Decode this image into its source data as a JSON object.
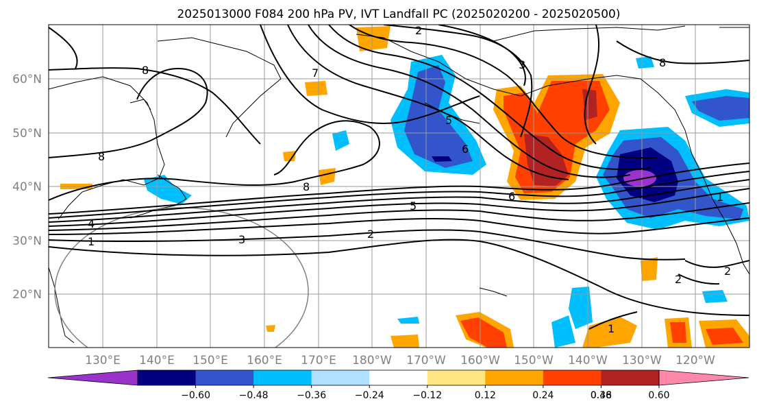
{
  "title": "2025013000 F084 200 hPa PV, IVT Landfall PC (2025020200 - 2025020500)",
  "lat_labels": [
    "60°N",
    "50°N",
    "40°N",
    "30°N",
    "20°N"
  ],
  "lon_labels": [
    "130°E",
    "140°E",
    "150°E",
    "160°E",
    "170°E",
    "180°W",
    "170°W",
    "160°W",
    "150°W",
    "140°W",
    "130°W",
    "120°W"
  ],
  "colorbar": {
    "tick_labels": [
      "−0.60",
      "−0.48",
      "−0.36",
      "−0.24",
      "−0.12",
      "0.12",
      "0.24",
      "0.36",
      "0.48",
      "0.60"
    ],
    "colors": [
      "#9933cc",
      "#000080",
      "#3355cc",
      "#00bfff",
      "#b0e0ff",
      "#ffffff",
      "#ffe680",
      "#ffa500",
      "#ff4000",
      "#b22222",
      "#ff88aa"
    ]
  },
  "contour_labels": [
    "2",
    "8",
    "7",
    "3",
    "8",
    "5",
    "6",
    "8",
    "8",
    "6",
    "5",
    "4",
    "1",
    "3",
    "2",
    "1",
    "2",
    "2",
    "1"
  ],
  "colors": {
    "background": "#ffffff",
    "grid": "#999999",
    "coast": "#000000",
    "contour": "#000000",
    "circle": "#808080"
  }
}
